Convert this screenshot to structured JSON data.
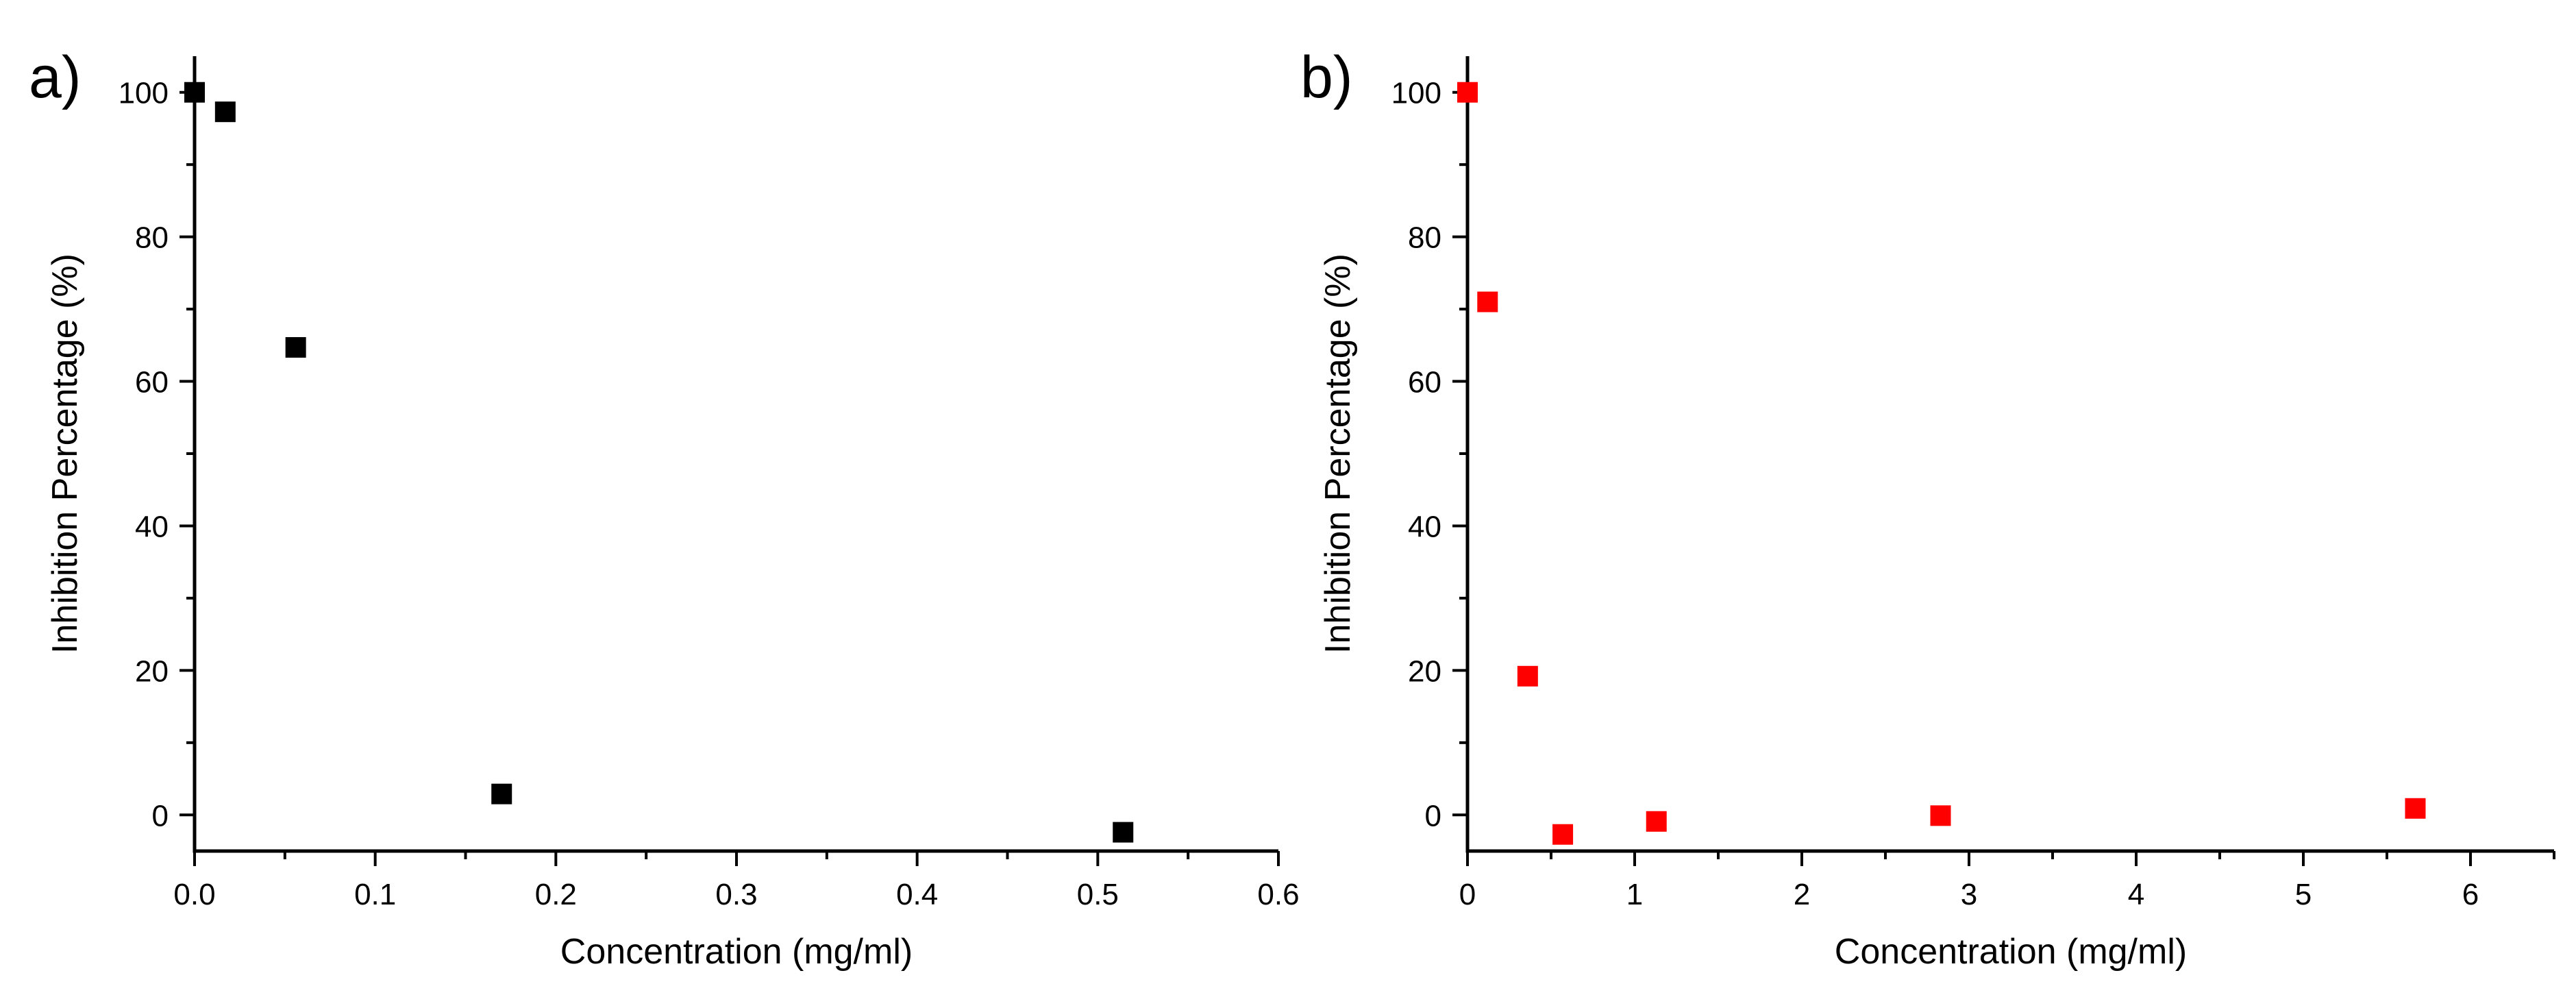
{
  "chart_data": [
    {
      "type": "scatter",
      "panel_label": "a)",
      "title": "",
      "xlabel": "Concentration (mg/ml)",
      "ylabel": "Inhibition Percentage (%)",
      "xlim": [
        0,
        0.6
      ],
      "ylim": [
        -5,
        105
      ],
      "x_ticks": [
        0.0,
        0.1,
        0.2,
        0.3,
        0.4,
        0.5,
        0.6
      ],
      "x_tick_labels": [
        "0.0",
        "0.1",
        "0.2",
        "0.3",
        "0.4",
        "0.5",
        "0.6"
      ],
      "y_ticks": [
        0,
        20,
        40,
        60,
        80,
        100
      ],
      "y_tick_labels": [
        "0",
        "20",
        "40",
        "60",
        "80",
        "100"
      ],
      "grid": false,
      "legend": "none",
      "series": [
        {
          "name": "a",
          "color": "#000000",
          "marker": "square",
          "x": [
            0.0,
            0.017,
            0.056,
            0.17,
            0.514
          ],
          "y": [
            100,
            97.3,
            64.7,
            2.9,
            -2.4
          ]
        }
      ]
    },
    {
      "type": "scatter",
      "panel_label": "b)",
      "title": "",
      "xlabel": "Concentration (mg/ml)",
      "ylabel": "Inhibition Percentage (%)",
      "xlim": [
        0,
        6.5
      ],
      "ylim": [
        -5,
        105
      ],
      "x_ticks": [
        0,
        1,
        2,
        3,
        4,
        5,
        6
      ],
      "x_tick_labels": [
        "0",
        "1",
        "2",
        "3",
        "4",
        "5",
        "6"
      ],
      "y_ticks": [
        0,
        20,
        40,
        60,
        80,
        100
      ],
      "y_tick_labels": [
        "0",
        "20",
        "40",
        "60",
        "80",
        "100"
      ],
      "grid": false,
      "legend": "none",
      "series": [
        {
          "name": "b",
          "color": "#ff0000",
          "marker": "square",
          "x": [
            0.0,
            0.12,
            0.36,
            0.57,
            1.13,
            2.83,
            5.67
          ],
          "y": [
            100,
            71.0,
            19.2,
            -2.7,
            -0.9,
            -0.1,
            0.9
          ]
        }
      ]
    }
  ]
}
